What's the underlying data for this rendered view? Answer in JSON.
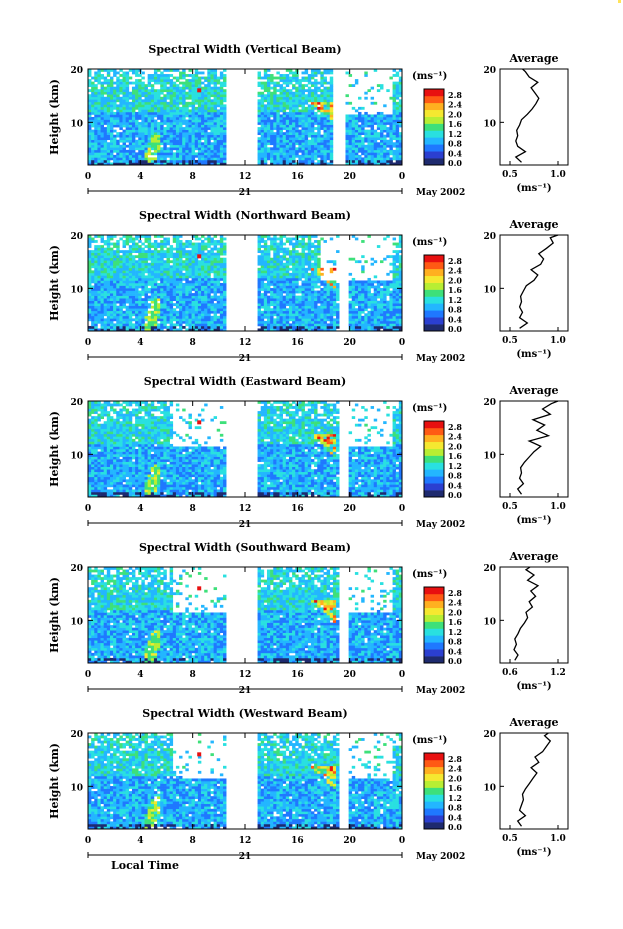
{
  "chart_data": {
    "type": "heatmap",
    "figure": {
      "xlabel": "Local Time",
      "date_label": "May 2002",
      "day_label": "21",
      "x_ticks": [
        "0",
        "4",
        "8",
        "12",
        "16",
        "20",
        "0"
      ],
      "y_ticks": [
        "20",
        "10"
      ],
      "ylabel": "Height (km)",
      "colorbar_unit": "(ms⁻¹)",
      "colorbar_ticks": [
        "2.8",
        "2.4",
        "2.0",
        "1.6",
        "1.2",
        "0.8",
        "0.4",
        "0.0"
      ],
      "colorbar_range": [
        0.0,
        2.8
      ],
      "colors": [
        "#1e2a6e",
        "#2b3fd0",
        "#1f78ff",
        "#23b6ff",
        "#29e0e0",
        "#3de07a",
        "#b8ee33",
        "#f5e830",
        "#ffb020",
        "#ff5a14",
        "#e81010"
      ],
      "avg_title": "Average",
      "avg_xlabel": "(ms⁻¹)",
      "avg_ylim": [
        2,
        20
      ]
    },
    "panels": [
      {
        "title": "Spectral Width (Vertical Beam)",
        "avg_xticks": [
          "0.5",
          "1.0"
        ],
        "avg_xlim": [
          0.5,
          1.0
        ],
        "data_gaps_hours": [
          [
            10.5,
            13.0
          ],
          [
            18.8,
            19.6
          ]
        ],
        "upper_gaps_hours": [
          [
            19.5,
            23.3
          ]
        ],
        "avg_profile": [
          [
            2.5,
            0.62
          ],
          [
            3.5,
            0.56
          ],
          [
            4.5,
            0.66
          ],
          [
            5.5,
            0.58
          ],
          [
            6.5,
            0.56
          ],
          [
            7.5,
            0.58
          ],
          [
            8.5,
            0.57
          ],
          [
            9.5,
            0.6
          ],
          [
            10.5,
            0.62
          ],
          [
            11.5,
            0.68
          ],
          [
            12.5,
            0.73
          ],
          [
            13.5,
            0.77
          ],
          [
            14.5,
            0.8
          ],
          [
            15.5,
            0.76
          ],
          [
            16.5,
            0.72
          ],
          [
            17.5,
            0.79
          ],
          [
            18.5,
            0.7
          ],
          [
            19.5,
            0.66
          ],
          [
            20,
            0.63
          ]
        ]
      },
      {
        "title": "Spectral Width (Northward Beam)",
        "avg_xticks": [
          "0.5",
          "1.0"
        ],
        "avg_xlim": [
          0.5,
          1.0
        ],
        "data_gaps_hours": [
          [
            10.5,
            13.0
          ],
          [
            19.3,
            19.8
          ]
        ],
        "upper_gaps_hours": [
          [
            17.8,
            23.3
          ]
        ],
        "avg_profile": [
          [
            2.5,
            0.6
          ],
          [
            3.5,
            0.68
          ],
          [
            4.5,
            0.6
          ],
          [
            5.5,
            0.63
          ],
          [
            6.5,
            0.6
          ],
          [
            7.5,
            0.62
          ],
          [
            8.5,
            0.61
          ],
          [
            9.5,
            0.64
          ],
          [
            10.5,
            0.67
          ],
          [
            11.5,
            0.75
          ],
          [
            12.5,
            0.79
          ],
          [
            13.5,
            0.72
          ],
          [
            14.5,
            0.82
          ],
          [
            15.5,
            0.85
          ],
          [
            16.5,
            0.8
          ],
          [
            17.5,
            0.88
          ],
          [
            18.5,
            0.95
          ],
          [
            19.5,
            0.92
          ],
          [
            20,
            1.0
          ]
        ]
      },
      {
        "title": "Spectral Width (Eastward Beam)",
        "avg_xticks": [
          "0.5",
          "1.0"
        ],
        "avg_xlim": [
          0.5,
          1.0
        ],
        "data_gaps_hours": [
          [
            10.5,
            13.0
          ],
          [
            19.3,
            19.8
          ]
        ],
        "upper_gaps_hours": [
          [
            6.5,
            10.5
          ],
          [
            19.8,
            23.3
          ]
        ],
        "avg_profile": [
          [
            2.5,
            0.62
          ],
          [
            3.5,
            0.58
          ],
          [
            4.5,
            0.64
          ],
          [
            5.5,
            0.6
          ],
          [
            6.5,
            0.62
          ],
          [
            7.5,
            0.61
          ],
          [
            8.5,
            0.65
          ],
          [
            9.5,
            0.7
          ],
          [
            10.5,
            0.75
          ],
          [
            11.5,
            0.82
          ],
          [
            12.5,
            0.7
          ],
          [
            13.5,
            0.9
          ],
          [
            14.5,
            0.78
          ],
          [
            15.5,
            0.86
          ],
          [
            16.5,
            0.74
          ],
          [
            17.5,
            0.92
          ],
          [
            18.5,
            0.84
          ],
          [
            19.5,
            0.93
          ],
          [
            20,
            1.0
          ]
        ]
      },
      {
        "title": "Spectral Width (Southward Beam)",
        "avg_xticks": [
          "0.6",
          "1.2"
        ],
        "avg_xlim": [
          0.6,
          1.2
        ],
        "data_gaps_hours": [
          [
            10.5,
            13.0
          ],
          [
            19.3,
            19.8
          ]
        ],
        "upper_gaps_hours": [
          [
            6.5,
            10.5
          ],
          [
            19.8,
            23.3
          ]
        ],
        "avg_profile": [
          [
            2.5,
            0.66
          ],
          [
            3.5,
            0.7
          ],
          [
            4.5,
            0.65
          ],
          [
            5.5,
            0.68
          ],
          [
            6.5,
            0.66
          ],
          [
            7.5,
            0.7
          ],
          [
            8.5,
            0.73
          ],
          [
            9.5,
            0.78
          ],
          [
            10.5,
            0.82
          ],
          [
            11.5,
            0.8
          ],
          [
            12.5,
            0.88
          ],
          [
            13.5,
            0.84
          ],
          [
            14.5,
            0.92
          ],
          [
            15.5,
            0.86
          ],
          [
            16.5,
            0.95
          ],
          [
            17.5,
            0.82
          ],
          [
            18.5,
            0.9
          ],
          [
            19.5,
            0.8
          ],
          [
            20,
            0.85
          ]
        ]
      },
      {
        "title": "Spectral Width (Westward Beam)",
        "avg_xticks": [
          "0.5",
          "1.0"
        ],
        "avg_xlim": [
          0.5,
          1.0
        ],
        "data_gaps_hours": [
          [
            10.5,
            13.0
          ],
          [
            19.3,
            19.8
          ]
        ],
        "upper_gaps_hours": [
          [
            6.5,
            10.5
          ],
          [
            19.8,
            23.3
          ]
        ],
        "avg_profile": [
          [
            2.5,
            0.62
          ],
          [
            3.5,
            0.58
          ],
          [
            4.5,
            0.66
          ],
          [
            5.5,
            0.6
          ],
          [
            6.5,
            0.62
          ],
          [
            7.5,
            0.64
          ],
          [
            8.5,
            0.63
          ],
          [
            9.5,
            0.66
          ],
          [
            10.5,
            0.7
          ],
          [
            11.5,
            0.74
          ],
          [
            12.5,
            0.78
          ],
          [
            13.5,
            0.72
          ],
          [
            14.5,
            0.8
          ],
          [
            15.5,
            0.76
          ],
          [
            16.5,
            0.84
          ],
          [
            17.5,
            0.88
          ],
          [
            18.5,
            0.92
          ],
          [
            19.5,
            0.86
          ],
          [
            20,
            0.9
          ]
        ]
      }
    ]
  }
}
